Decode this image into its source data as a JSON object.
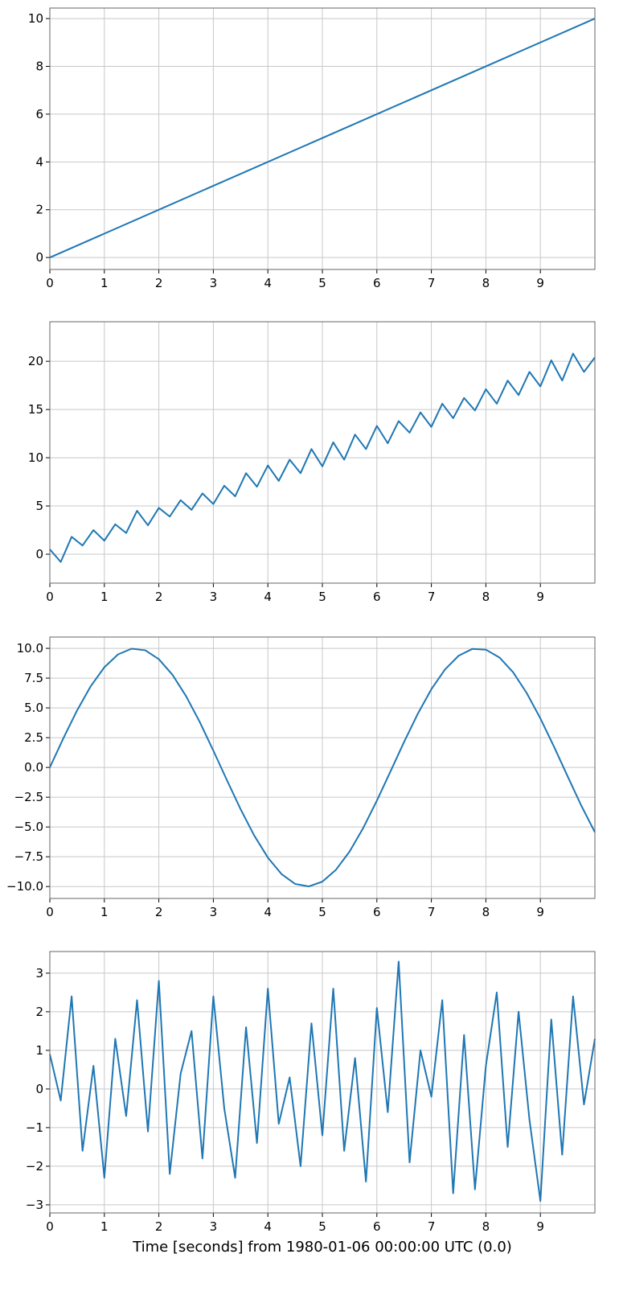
{
  "chart_data": [
    {
      "type": "line",
      "x": [
        0,
        10
      ],
      "series": [
        {
          "color": "#1f77b4",
          "values": [
            0,
            10
          ]
        }
      ],
      "xlim": [
        0,
        10
      ],
      "xticks": [
        0,
        1,
        2,
        3,
        4,
        5,
        6,
        7,
        8,
        9
      ],
      "ylim": [
        -0.5,
        10.44
      ],
      "yticks": [
        0,
        2,
        4,
        6,
        8,
        10
      ],
      "grid": true
    },
    {
      "type": "line",
      "x": [
        0,
        0.2,
        0.4,
        0.6,
        0.8,
        1.0,
        1.2,
        1.4,
        1.6,
        1.8,
        2.0,
        2.2,
        2.4,
        2.6,
        2.8,
        3.0,
        3.2,
        3.4,
        3.6,
        3.8,
        4.0,
        4.2,
        4.4,
        4.6,
        4.8,
        5.0,
        5.2,
        5.4,
        5.6,
        5.8,
        6.0,
        6.2,
        6.4,
        6.6,
        6.8,
        7.0,
        7.2,
        7.4,
        7.6,
        7.8,
        8.0,
        8.2,
        8.4,
        8.6,
        8.8,
        9.0,
        9.2,
        9.4,
        9.6,
        9.8,
        10.0
      ],
      "series": [
        {
          "color": "#1f77b4",
          "values": [
            0.5,
            -0.8,
            1.8,
            0.9,
            2.5,
            1.4,
            3.1,
            2.2,
            4.5,
            3.0,
            4.8,
            3.9,
            5.6,
            4.6,
            6.3,
            5.2,
            7.1,
            6.0,
            8.4,
            7.0,
            9.2,
            7.6,
            9.8,
            8.4,
            10.9,
            9.1,
            11.6,
            9.8,
            12.4,
            10.9,
            13.3,
            11.5,
            13.8,
            12.6,
            14.7,
            13.2,
            15.6,
            14.1,
            16.2,
            14.9,
            17.1,
            15.6,
            18.0,
            16.5,
            18.9,
            17.4,
            20.1,
            18.0,
            20.8,
            18.9,
            20.4
          ]
        }
      ],
      "xlim": [
        0,
        10
      ],
      "xticks": [
        0,
        1,
        2,
        3,
        4,
        5,
        6,
        7,
        8,
        9
      ],
      "ylim": [
        -3,
        24.1
      ],
      "yticks": [
        0,
        5,
        10,
        15,
        20
      ],
      "grid": true
    },
    {
      "type": "line",
      "x": [
        0,
        0.25,
        0.5,
        0.75,
        1.0,
        1.25,
        1.5,
        1.75,
        2.0,
        2.25,
        2.5,
        2.75,
        3.0,
        3.25,
        3.5,
        3.75,
        4.0,
        4.25,
        4.5,
        4.75,
        5.0,
        5.25,
        5.5,
        5.75,
        6.0,
        6.25,
        6.5,
        6.75,
        7.0,
        7.25,
        7.5,
        7.75,
        8.0,
        8.25,
        8.5,
        8.75,
        9.0,
        9.25,
        9.5,
        9.75,
        10.0
      ],
      "series": [
        {
          "color": "#1f77b4",
          "values": [
            0,
            2.47,
            4.79,
            6.82,
            8.41,
            9.49,
            9.97,
            9.84,
            9.09,
            7.78,
            5.98,
            3.82,
            1.41,
            -1.08,
            -3.51,
            -5.72,
            -7.57,
            -8.95,
            -9.78,
            -9.99,
            -9.59,
            -8.59,
            -7.06,
            -5.08,
            -2.79,
            -0.33,
            2.15,
            4.5,
            6.57,
            8.23,
            9.38,
            9.95,
            9.89,
            9.23,
            7.99,
            6.24,
            4.12,
            1.74,
            -0.75,
            -3.2,
            -5.44
          ]
        }
      ],
      "xlim": [
        0,
        10
      ],
      "xticks": [
        0,
        1,
        2,
        3,
        4,
        5,
        6,
        7,
        8,
        9
      ],
      "ylim": [
        -11,
        10.95
      ],
      "yticks": [
        {
          "value": -10,
          "label": "−10.0"
        },
        {
          "value": -7.5,
          "label": "−7.5"
        },
        {
          "value": -5,
          "label": "−5.0"
        },
        {
          "value": -2.5,
          "label": "−2.5"
        },
        {
          "value": 0,
          "label": "0.0"
        },
        {
          "value": 2.5,
          "label": "2.5"
        },
        {
          "value": 5,
          "label": "5.0"
        },
        {
          "value": 7.5,
          "label": "7.5"
        },
        {
          "value": 10,
          "label": "10.0"
        }
      ],
      "grid": true
    },
    {
      "type": "line",
      "x": [
        0,
        0.2,
        0.4,
        0.6,
        0.8,
        1.0,
        1.2,
        1.4,
        1.6,
        1.8,
        2.0,
        2.2,
        2.4,
        2.6,
        2.8,
        3.0,
        3.2,
        3.4,
        3.6,
        3.8,
        4.0,
        4.2,
        4.4,
        4.6,
        4.8,
        5.0,
        5.2,
        5.4,
        5.6,
        5.8,
        6.0,
        6.2,
        6.4,
        6.6,
        6.8,
        7.0,
        7.2,
        7.4,
        7.6,
        7.8,
        8.0,
        8.2,
        8.4,
        8.6,
        8.8,
        9.0,
        9.2,
        9.4,
        9.6,
        9.8,
        10.0
      ],
      "series": [
        {
          "color": "#1f77b4",
          "values": [
            0.9,
            -0.3,
            2.4,
            -1.6,
            0.6,
            -2.3,
            1.3,
            -0.7,
            2.3,
            -1.1,
            2.8,
            -2.2,
            0.4,
            1.5,
            -1.8,
            2.4,
            -0.5,
            -2.3,
            1.6,
            -1.4,
            2.6,
            -0.9,
            0.3,
            -2.0,
            1.7,
            -1.2,
            2.6,
            -1.6,
            0.8,
            -2.4,
            2.1,
            -0.6,
            3.3,
            -1.9,
            1.0,
            -0.2,
            2.3,
            -2.7,
            1.4,
            -2.6,
            0.6,
            2.5,
            -1.5,
            2.0,
            -0.8,
            -2.9,
            1.8,
            -1.7,
            2.4,
            -0.4,
            1.3
          ]
        }
      ],
      "xlim": [
        0,
        10
      ],
      "xticks": [
        0,
        1,
        2,
        3,
        4,
        5,
        6,
        7,
        8,
        9
      ],
      "ylim": [
        -3.21,
        3.56
      ],
      "yticks": [
        {
          "value": -3,
          "label": "−3"
        },
        {
          "value": -2,
          "label": "−2"
        },
        {
          "value": -1,
          "label": "−1"
        },
        0,
        1,
        2,
        3
      ],
      "grid": true,
      "xlabel": "Time [seconds] from 1980-01-06 00:00:00 UTC (0.0)"
    }
  ]
}
